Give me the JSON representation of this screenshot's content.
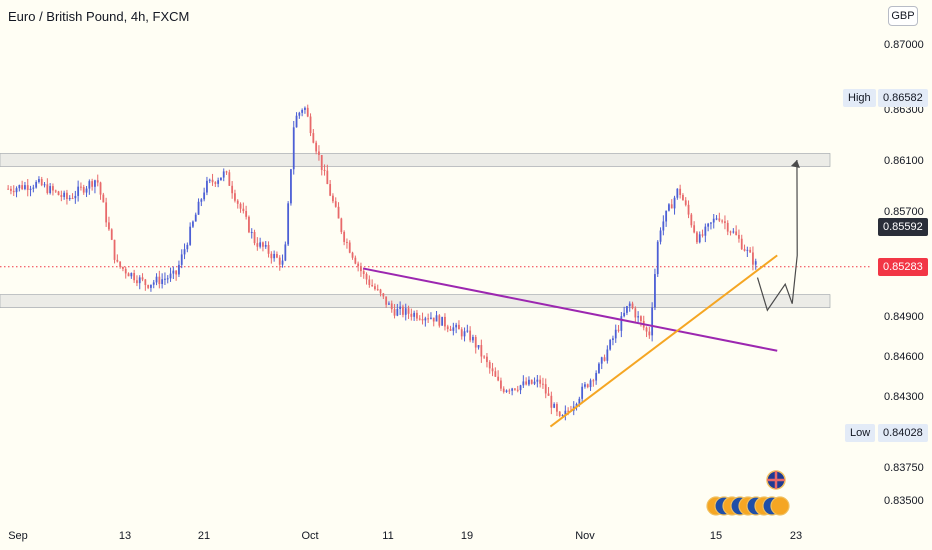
{
  "title": "Euro / British Pound, 4h, FXCM",
  "currency": "GBP",
  "colors": {
    "background": "#fffef4",
    "zone_fill": "#dcdcdc",
    "candle_up": "#4c5fd5",
    "candle_down": "#e8696a",
    "resistance_trend": "#9c27b0",
    "support_trend": "#f5a623",
    "projection": "#4a4a4a",
    "current_price": "#f23645"
  },
  "price_labels": {
    "high_label": "High",
    "high_value": "0.86582",
    "last_value": "0.85592",
    "current_value": "0.85283",
    "low_label": "Low",
    "low_value": "0.84028"
  },
  "chart_data": {
    "type": "candlestick",
    "title": "Euro / British Pound, 4h, FXCM",
    "y_tick_labels": [
      "0.87000",
      "0.86300",
      "0.86100",
      "0.85700",
      "0.84900",
      "0.84600",
      "0.84300",
      "0.83750",
      "0.83500"
    ],
    "x_tick_labels": [
      "Sep",
      "13",
      "21",
      "Oct",
      "11",
      "19",
      "Nov",
      "15",
      "23"
    ],
    "high": 0.86582,
    "low": 0.84028,
    "last": 0.85592,
    "current_price": 0.85283,
    "resistance_zone": [
      0.8605,
      0.8615
    ],
    "support_zone": [
      0.8497,
      0.8507
    ],
    "price_path": [
      {
        "date": "Aug 31",
        "close": 0.8588
      },
      {
        "date": "Sep 3",
        "close": 0.8592
      },
      {
        "date": "Sep 6",
        "close": 0.858
      },
      {
        "date": "Sep 9",
        "close": 0.8596
      },
      {
        "date": "Sep 11",
        "close": 0.853
      },
      {
        "date": "Sep 14",
        "close": 0.8515
      },
      {
        "date": "Sep 17",
        "close": 0.8522
      },
      {
        "date": "Sep 20",
        "close": 0.859
      },
      {
        "date": "Sep 22",
        "close": 0.86
      },
      {
        "date": "Sep 25",
        "close": 0.8548
      },
      {
        "date": "Sep 28",
        "close": 0.853
      },
      {
        "date": "Sep 29",
        "close": 0.864
      },
      {
        "date": "Sep 30",
        "close": 0.8652
      },
      {
        "date": "Oct 2",
        "close": 0.86
      },
      {
        "date": "Oct 4",
        "close": 0.8552
      },
      {
        "date": "Oct 6",
        "close": 0.8522
      },
      {
        "date": "Oct 9",
        "close": 0.8495
      },
      {
        "date": "Oct 13",
        "close": 0.849
      },
      {
        "date": "Oct 17",
        "close": 0.8474
      },
      {
        "date": "Oct 20",
        "close": 0.8435
      },
      {
        "date": "Oct 24",
        "close": 0.844
      },
      {
        "date": "Oct 26",
        "close": 0.841
      },
      {
        "date": "Oct 30",
        "close": 0.8452
      },
      {
        "date": "Nov 2",
        "close": 0.85
      },
      {
        "date": "Nov 4",
        "close": 0.8475
      },
      {
        "date": "Nov 5",
        "close": 0.8556
      },
      {
        "date": "Nov 7",
        "close": 0.8588
      },
      {
        "date": "Nov 9",
        "close": 0.8548
      },
      {
        "date": "Nov 11",
        "close": 0.8568
      },
      {
        "date": "Nov 13",
        "close": 0.855
      },
      {
        "date": "Nov 15",
        "close": 0.8528
      }
    ],
    "trendlines": [
      {
        "name": "resistance",
        "points": [
          [
            "Oct 6",
            0.8527
          ],
          [
            "Nov 17",
            0.8464
          ]
        ]
      },
      {
        "name": "support",
        "points": [
          [
            "Oct 25",
            0.8406
          ],
          [
            "Nov 17",
            0.8537
          ]
        ]
      }
    ],
    "projection_path": [
      [
        "Nov 15",
        0.852
      ],
      [
        "Nov 16",
        0.8495
      ],
      [
        "Nov 17",
        0.8515
      ],
      [
        "Nov 17",
        0.85
      ],
      [
        "Nov 17",
        0.8537
      ],
      [
        "Nov 19",
        0.861
      ]
    ]
  }
}
